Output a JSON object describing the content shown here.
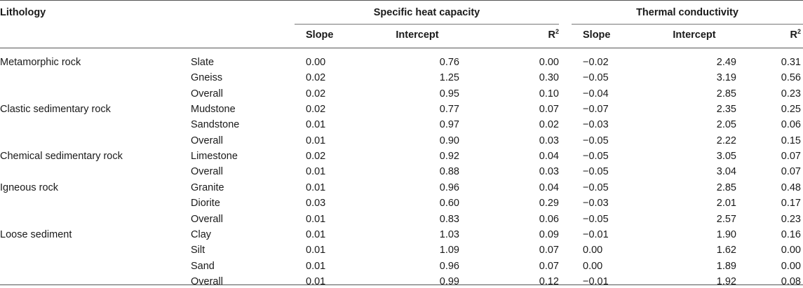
{
  "headers": {
    "lithology": "Lithology",
    "group1": "Specific heat capacity",
    "group2": "Thermal conductivity",
    "slope": "Slope",
    "intercept": "Intercept",
    "r": "R",
    "r_sup": "2"
  },
  "rows": [
    {
      "group": "Metamorphic rock",
      "type": "Slate",
      "s1": "0.00",
      "i1": "0.76",
      "r1": "0.00",
      "s2": "−0.02",
      "i2": "2.49",
      "r2": "0.31"
    },
    {
      "group": "",
      "type": "Gneiss",
      "s1": "0.02",
      "i1": "1.25",
      "r1": "0.30",
      "s2": "−0.05",
      "i2": "3.19",
      "r2": "0.56"
    },
    {
      "group": "",
      "type": "Overall",
      "s1": "0.02",
      "i1": "0.95",
      "r1": "0.10",
      "s2": "−0.04",
      "i2": "2.85",
      "r2": "0.23"
    },
    {
      "group": "Clastic sedimentary rock",
      "type": "Mudstone",
      "s1": "0.02",
      "i1": "0.77",
      "r1": "0.07",
      "s2": "−0.07",
      "i2": "2.35",
      "r2": "0.25"
    },
    {
      "group": "",
      "type": "Sandstone",
      "s1": "0.01",
      "i1": "0.97",
      "r1": "0.02",
      "s2": "−0.03",
      "i2": "2.05",
      "r2": "0.06"
    },
    {
      "group": "",
      "type": "Overall",
      "s1": "0.01",
      "i1": "0.90",
      "r1": "0.03",
      "s2": "−0.05",
      "i2": "2.22",
      "r2": "0.15"
    },
    {
      "group": "Chemical sedimentary rock",
      "type": "Limestone",
      "s1": "0.02",
      "i1": "0.92",
      "r1": "0.04",
      "s2": "−0.05",
      "i2": "3.05",
      "r2": "0.07"
    },
    {
      "group": "",
      "type": "Overall",
      "s1": "0.01",
      "i1": "0.88",
      "r1": "0.03",
      "s2": "−0.05",
      "i2": "3.04",
      "r2": "0.07"
    },
    {
      "group": "Igneous rock",
      "type": "Granite",
      "s1": "0.01",
      "i1": "0.96",
      "r1": "0.04",
      "s2": "−0.05",
      "i2": "2.85",
      "r2": "0.48"
    },
    {
      "group": "",
      "type": "Diorite",
      "s1": "0.03",
      "i1": "0.60",
      "r1": "0.29",
      "s2": "−0.03",
      "i2": "2.01",
      "r2": "0.17"
    },
    {
      "group": "",
      "type": "Overall",
      "s1": "0.01",
      "i1": "0.83",
      "r1": "0.06",
      "s2": "−0.05",
      "i2": "2.57",
      "r2": "0.23"
    },
    {
      "group": "Loose sediment",
      "type": "Clay",
      "s1": "0.01",
      "i1": "1.03",
      "r1": "0.09",
      "s2": "−0.01",
      "i2": "1.90",
      "r2": "0.16"
    },
    {
      "group": "",
      "type": "Silt",
      "s1": "0.01",
      "i1": "1.09",
      "r1": "0.07",
      "s2": "0.00",
      "i2": "1.62",
      "r2": "0.00"
    },
    {
      "group": "",
      "type": "Sand",
      "s1": "0.01",
      "i1": "0.96",
      "r1": "0.07",
      "s2": "0.00",
      "i2": "1.89",
      "r2": "0.00"
    },
    {
      "group": "",
      "type": "Overall",
      "s1": "0.01",
      "i1": "0.99",
      "r1": "0.12",
      "s2": "−0.01",
      "i2": "1.92",
      "r2": "0.08"
    }
  ]
}
